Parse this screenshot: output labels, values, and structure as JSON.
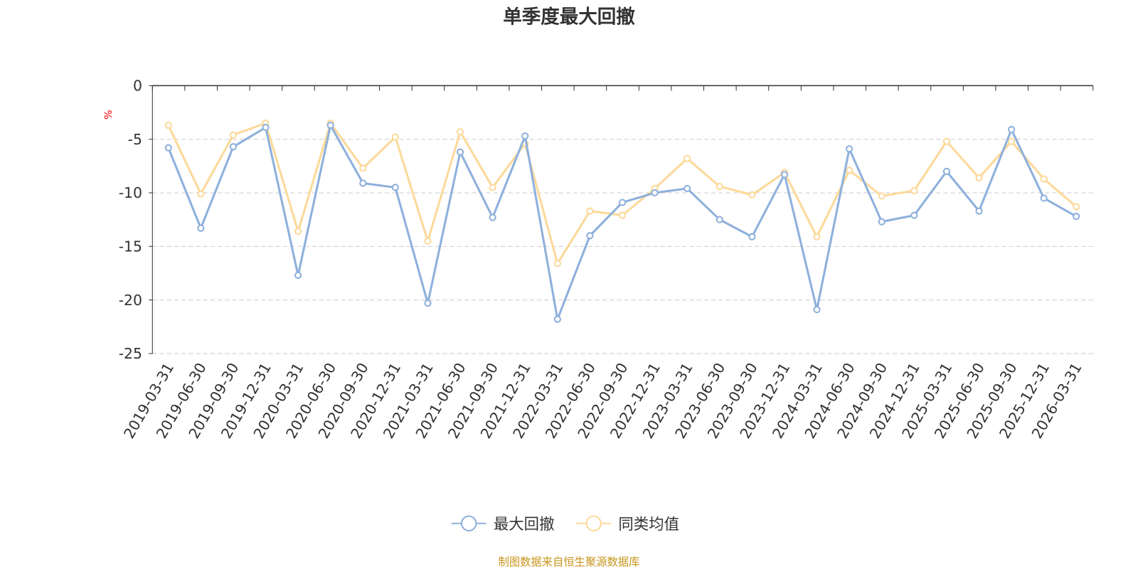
{
  "chart_data": {
    "type": "line",
    "title": "单季度最大回撤",
    "ylabel": "%",
    "xlabel": "",
    "ylim": [
      -25,
      0
    ],
    "yticks": [
      0,
      -5,
      -10,
      -15,
      -20,
      -25
    ],
    "grid": true,
    "legend_position": "bottom-center",
    "categories": [
      "2019-03-31",
      "2019-06-30",
      "2019-09-30",
      "2019-12-31",
      "2020-03-31",
      "2020-06-30",
      "2020-09-30",
      "2020-12-31",
      "2021-03-31",
      "2021-06-30",
      "2021-09-30",
      "2021-12-31",
      "2022-03-31",
      "2022-06-30",
      "2022-09-30",
      "2022-12-31",
      "2023-03-31",
      "2023-06-30",
      "2023-09-30",
      "2023-12-31",
      "2024-03-31",
      "2024-06-30",
      "2024-09-30",
      "2024-12-31",
      "2025-03-31",
      "2025-06-30",
      "2025-09-30",
      "2025-12-31",
      "2026-03-31"
    ],
    "series": [
      {
        "name": "最大回撤",
        "color": "#8eb0dc",
        "values": [
          -5.8,
          -13.3,
          -5.7,
          -3.9,
          -17.7,
          -3.7,
          -9.1,
          -9.5,
          -20.3,
          -6.2,
          -12.3,
          -4.7,
          -21.8,
          -14.0,
          -10.9,
          -10.0,
          -9.6,
          -12.5,
          -14.1,
          -8.3,
          -20.9,
          -5.9,
          -12.7,
          -12.1,
          -8.0,
          -11.7,
          -4.1,
          -10.5,
          -12.2
        ]
      },
      {
        "name": "同类均值",
        "color": "#fcd99a",
        "values": [
          -3.7,
          -10.1,
          -4.6,
          -3.5,
          -13.6,
          -3.5,
          -7.7,
          -4.8,
          -14.5,
          -4.3,
          -9.5,
          -5.4,
          -16.6,
          -11.7,
          -12.1,
          -9.6,
          -6.8,
          -9.4,
          -10.2,
          -8.1,
          -14.1,
          -7.9,
          -10.3,
          -9.8,
          -5.2,
          -8.6,
          -5.2,
          -8.7,
          -11.3
        ]
      }
    ]
  },
  "footer": "制图数据来自恒生聚源数据库"
}
